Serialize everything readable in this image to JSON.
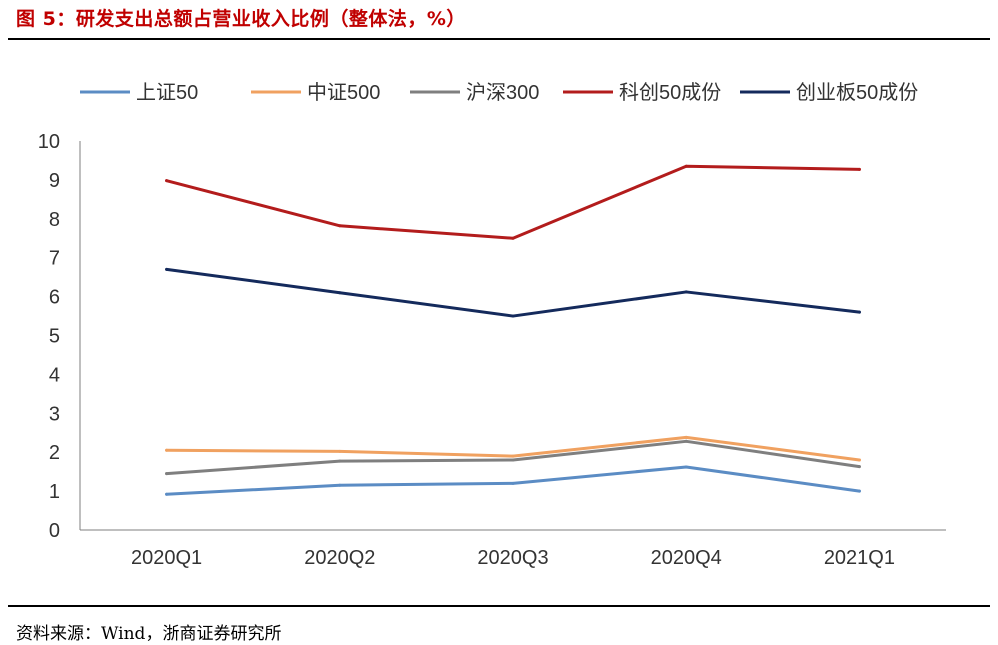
{
  "figure": {
    "title": "图 5：研发支出总额占营业收入比例（整体法，%）",
    "source": "资料来源：Wind，浙商证券研究所"
  },
  "chart_data": {
    "type": "line",
    "categories": [
      "2020Q1",
      "2020Q2",
      "2020Q3",
      "2020Q4",
      "2021Q1"
    ],
    "ylim": [
      0,
      10
    ],
    "yticks": [
      0,
      1,
      2,
      3,
      4,
      5,
      6,
      7,
      8,
      9,
      10
    ],
    "grid": false,
    "legend_position": "top",
    "series": [
      {
        "name": "上证50",
        "color": "#5b8cc4",
        "values": [
          0.92,
          1.15,
          1.2,
          1.62,
          1.0
        ]
      },
      {
        "name": "中证500",
        "color": "#f0a160",
        "values": [
          2.05,
          2.02,
          1.9,
          2.38,
          1.8
        ]
      },
      {
        "name": "沪深300",
        "color": "#7f7f7f",
        "values": [
          1.45,
          1.77,
          1.8,
          2.28,
          1.63
        ]
      },
      {
        "name": "科创50成份",
        "color": "#b31c1c",
        "values": [
          8.98,
          7.82,
          7.5,
          9.35,
          9.27
        ]
      },
      {
        "name": "创业板50成份",
        "color": "#142a5c",
        "values": [
          6.7,
          6.1,
          5.5,
          6.12,
          5.6
        ]
      }
    ]
  }
}
